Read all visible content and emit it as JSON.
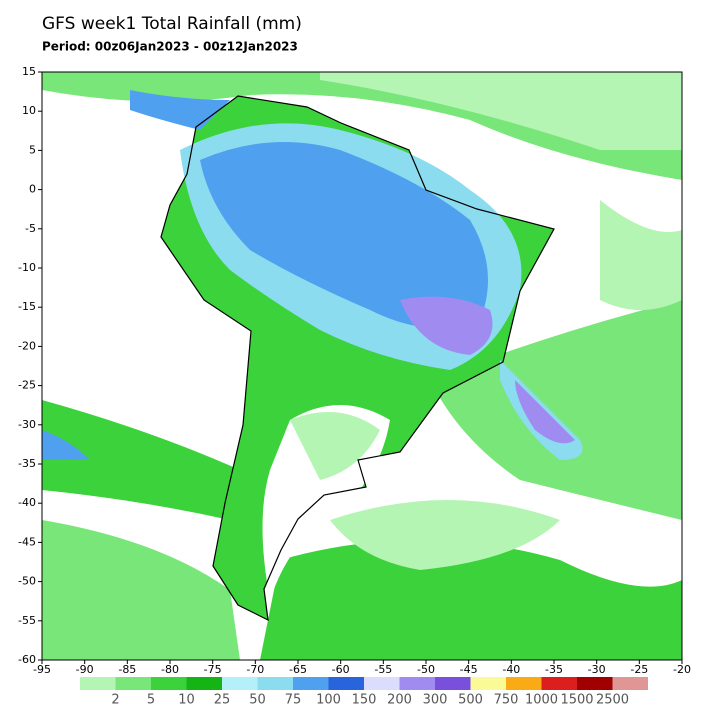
{
  "header": {
    "title": "GFS week1 Total Rainfall (mm)",
    "period": "Period: 00z06Jan2023 - 00z12Jan2023"
  },
  "map": {
    "xlim": [
      -95,
      -20
    ],
    "ylim": [
      -60,
      15
    ],
    "xticks": [
      -95,
      -90,
      -85,
      -80,
      -75,
      -70,
      -65,
      -60,
      -55,
      -50,
      -45,
      -40,
      -35,
      -30,
      -25,
      -20
    ],
    "yticks": [
      15,
      10,
      5,
      0,
      -5,
      -10,
      -15,
      -20,
      -25,
      -30,
      -35,
      -40,
      -45,
      -50,
      -55,
      -60
    ]
  },
  "colorbar": {
    "labels": [
      2,
      5,
      10,
      25,
      50,
      75,
      100,
      150,
      200,
      300,
      500,
      750,
      1000,
      1500,
      2500
    ],
    "colors": [
      "#b4f5b4",
      "#78e678",
      "#3cd23c",
      "#14b414",
      "#b4f0fa",
      "#8cdcf0",
      "#50a0f0",
      "#2864dc",
      "#dcdcff",
      "#a08cf0",
      "#7850dc",
      "#fafa96",
      "#faaa14",
      "#dc1e1e",
      "#a00000",
      "#e19696"
    ]
  }
}
